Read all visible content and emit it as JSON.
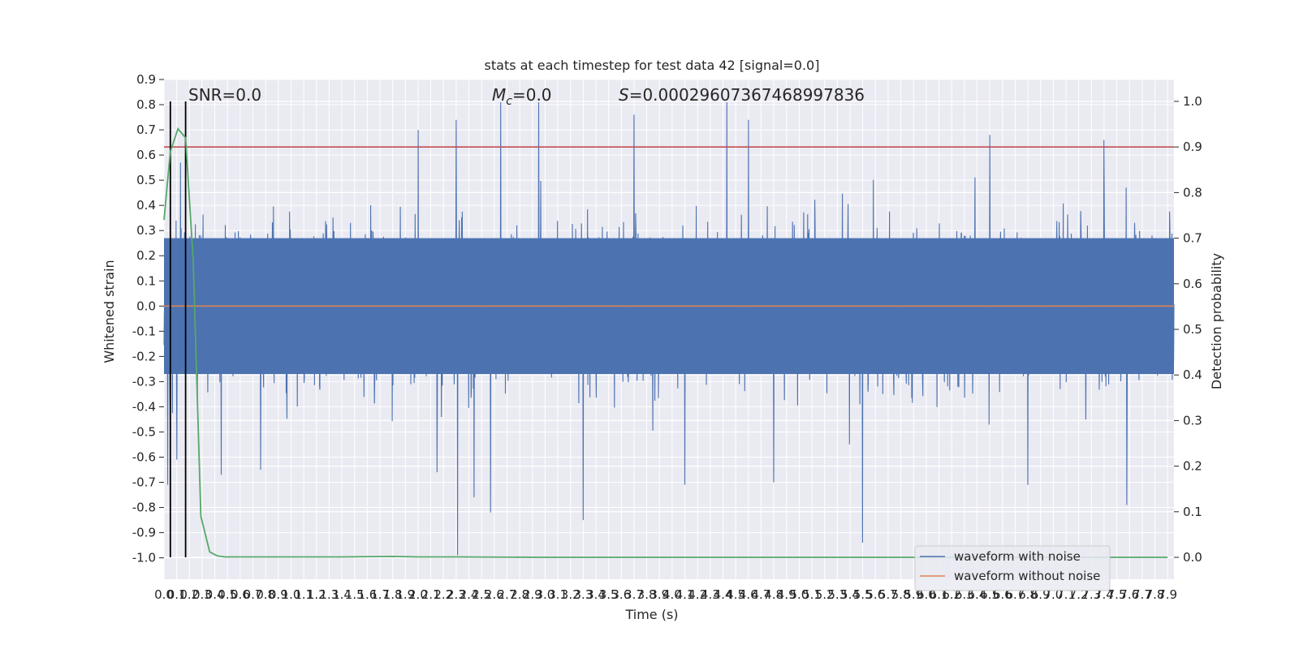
{
  "chart_data": {
    "type": "line",
    "title": "stats at each timestep for test data 42 [signal=0.0]",
    "xlabel": "Time (s)",
    "ylabel": "Whitened strain",
    "y2label": "Detection probability",
    "xlim": [
      0.0,
      7.95
    ],
    "ylim": [
      -1.085,
      0.9
    ],
    "y2lim": [
      -0.048,
      1.048
    ],
    "x_ticks": [
      "0.0",
      "0.1",
      "0.2",
      "0.3",
      "0.4",
      "0.5",
      "0.6",
      "0.7",
      "0.8",
      "0.9",
      "1.0",
      "1.1",
      "1.2",
      "1.3",
      "1.4",
      "1.5",
      "1.6",
      "1.7",
      "1.8",
      "1.9",
      "2.0",
      "2.1",
      "2.2",
      "2.3",
      "2.4",
      "2.5",
      "2.6",
      "2.7",
      "2.8",
      "2.9",
      "3.0",
      "3.1",
      "3.2",
      "3.3",
      "3.4",
      "3.5",
      "3.6",
      "3.7",
      "3.8",
      "3.9",
      "4.0",
      "4.1",
      "4.2",
      "4.3",
      "4.4",
      "4.5",
      "4.6",
      "4.7",
      "4.8",
      "4.9",
      "5.0",
      "5.1",
      "5.2",
      "5.3",
      "5.4",
      "5.5",
      "5.6",
      "5.7",
      "5.8",
      "5.9",
      "6.0",
      "6.1",
      "6.2",
      "6.3",
      "6.4",
      "6.5",
      "6.6",
      "6.7",
      "6.8",
      "6.9",
      "7.0",
      "7.1",
      "7.2",
      "7.3",
      "7.4",
      "7.5",
      "7.6",
      "7.7",
      "7.8",
      "7.9"
    ],
    "y_ticks": [
      "0.9",
      "0.8",
      "0.7",
      "0.6",
      "0.5",
      "0.4",
      "0.3",
      "0.2",
      "0.1",
      "0.0",
      "-0.1",
      "-0.2",
      "-0.3",
      "-0.4",
      "-0.5",
      "-0.6",
      "-0.7",
      "-0.8",
      "-0.9",
      "-1.0"
    ],
    "y2_ticks": [
      "1.0",
      "0.9",
      "0.8",
      "0.7",
      "0.6",
      "0.5",
      "0.4",
      "0.3",
      "0.2",
      "0.1",
      "0.0"
    ],
    "annotations": {
      "snr": "SNR=0.0",
      "mc_symbol": "M",
      "mc_sub": "c",
      "mc_value": "=0.0",
      "s_symbol": "S",
      "s_value": "=0.0002960736746899783​6"
    },
    "threshold": 0.9,
    "vlines": [
      0.05,
      0.17
    ],
    "series": [
      {
        "name": "waveform with noise",
        "color": "#4c72b0"
      },
      {
        "name": "waveform without noise",
        "color": "#dd8452",
        "values": [
          0.0
        ]
      }
    ],
    "detection_probability": {
      "color": "#55a868",
      "x": [
        0.0,
        0.05,
        0.11,
        0.17,
        0.23,
        0.29,
        0.36,
        0.42,
        0.48,
        0.6,
        0.8,
        1.0,
        1.4,
        1.8,
        2.0,
        2.3,
        3.0,
        4.0,
        5.0,
        6.0,
        7.0,
        7.9
      ],
      "y": [
        0.74,
        0.89,
        0.94,
        0.92,
        0.65,
        0.09,
        0.012,
        0.003,
        0.001,
        0.001,
        0.001,
        0.001,
        0.001,
        0.002,
        0.001,
        0.001,
        0.0,
        0.0,
        0.0,
        0.0,
        0.0,
        0.0
      ]
    },
    "noise_peaks": [
      {
        "x": 0.03,
        "y": -0.71
      },
      {
        "x": 0.1,
        "y": -0.61
      },
      {
        "x": 0.13,
        "y": 0.57
      },
      {
        "x": 0.45,
        "y": -0.67
      },
      {
        "x": 0.76,
        "y": -0.65
      },
      {
        "x": 2.0,
        "y": 0.7
      },
      {
        "x": 2.15,
        "y": -0.66
      },
      {
        "x": 2.3,
        "y": 0.74
      },
      {
        "x": 2.31,
        "y": -0.99
      },
      {
        "x": 2.44,
        "y": -0.76
      },
      {
        "x": 2.57,
        "y": -0.82
      },
      {
        "x": 2.65,
        "y": 0.81
      },
      {
        "x": 2.95,
        "y": 0.81
      },
      {
        "x": 3.3,
        "y": -0.85
      },
      {
        "x": 3.7,
        "y": 0.76
      },
      {
        "x": 4.1,
        "y": -0.71
      },
      {
        "x": 4.43,
        "y": 0.81
      },
      {
        "x": 4.6,
        "y": 0.74
      },
      {
        "x": 4.8,
        "y": -0.7
      },
      {
        "x": 5.5,
        "y": -0.94
      },
      {
        "x": 6.5,
        "y": 0.68
      },
      {
        "x": 6.8,
        "y": -0.71
      },
      {
        "x": 7.4,
        "y": 0.66
      },
      {
        "x": 7.58,
        "y": -0.79
      }
    ],
    "legend_position": "lower-right",
    "grid": true
  }
}
